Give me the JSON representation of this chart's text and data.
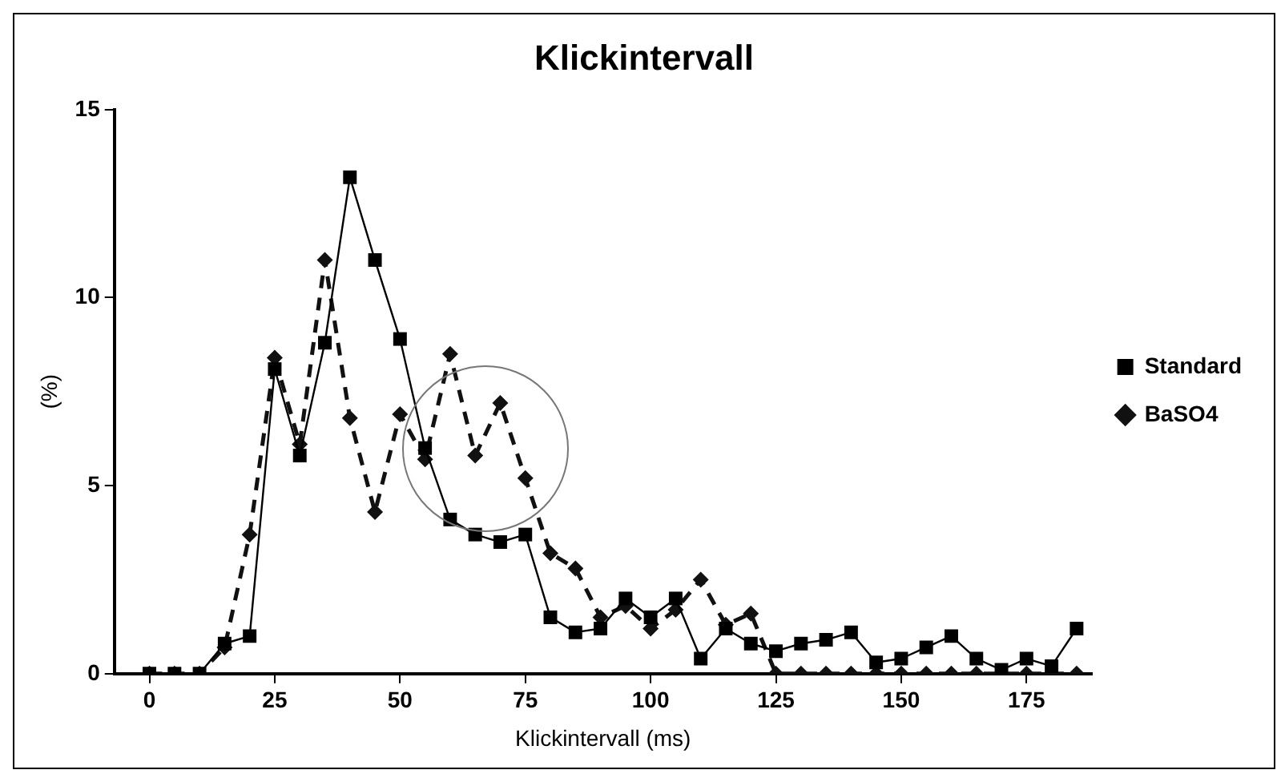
{
  "chart_data": {
    "type": "line",
    "title": "Klickintervall",
    "xlabel": "Klickintervall (ms)",
    "ylabel": "(%)",
    "x": [
      0,
      5,
      10,
      15,
      20,
      25,
      30,
      35,
      40,
      45,
      50,
      55,
      60,
      65,
      70,
      75,
      80,
      85,
      90,
      95,
      100,
      105,
      110,
      115,
      120,
      125,
      130,
      135,
      140,
      145,
      150,
      155,
      160,
      165,
      170,
      175,
      180,
      185
    ],
    "series": [
      {
        "name": "Standard",
        "color": "#000000",
        "marker": "square",
        "line_style": "solid",
        "values": [
          0,
          0,
          0,
          0.8,
          1.0,
          8.1,
          5.8,
          8.8,
          13.2,
          11.0,
          8.9,
          6.0,
          4.1,
          3.7,
          3.5,
          3.7,
          1.5,
          1.1,
          1.2,
          2.0,
          1.5,
          2.0,
          0.4,
          1.2,
          0.8,
          0.6,
          0.8,
          0.9,
          1.1,
          0.3,
          0.4,
          0.7,
          1.0,
          0.4,
          0.1,
          0.4,
          0.2,
          1.2
        ]
      },
      {
        "name": "BaSO4",
        "color": "#111111",
        "marker": "diamond",
        "line_style": "dashed",
        "values": [
          0,
          0,
          0,
          0.7,
          3.7,
          8.4,
          6.1,
          11.0,
          6.8,
          4.3,
          6.9,
          5.7,
          8.5,
          5.8,
          7.2,
          5.2,
          3.2,
          2.8,
          1.5,
          1.8,
          1.2,
          1.7,
          2.5,
          1.3,
          1.6,
          0,
          0,
          0,
          0,
          0,
          0,
          0,
          0,
          0,
          0,
          0,
          0,
          0
        ]
      }
    ],
    "xlim": [
      -7,
      188
    ],
    "xticks": [
      0,
      25,
      50,
      75,
      100,
      125,
      150,
      175
    ],
    "ylim": [
      0,
      15
    ],
    "yticks": [
      0,
      5,
      10,
      15
    ],
    "grid": false,
    "legend": "right"
  }
}
